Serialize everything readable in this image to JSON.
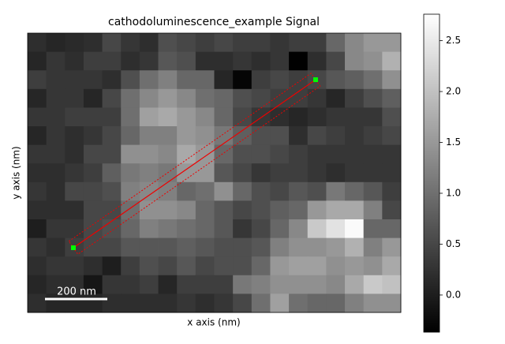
{
  "chart_data": {
    "type": "heatmap",
    "title": "cathodoluminescence_example Signal",
    "x_label": "x axis (nm)",
    "y_label": "y axis (nm)",
    "scale_bar": "200 nm",
    "colormap": "gray",
    "zlim": [
      -0.365,
      2.76
    ],
    "colorbar_ticks": [
      {
        "value": 0,
        "label": "0.0"
      },
      0.5,
      {
        "value": 1,
        "label": "1.0"
      },
      1.5,
      {
        "value": 2,
        "label": "2.0"
      },
      2.5
    ],
    "z": [
      [
        0.2,
        0.1,
        0.15,
        0.2,
        0.5,
        0.3,
        0.2,
        0.6,
        0.5,
        0.4,
        0.5,
        0.4,
        0.4,
        0.3,
        0.4,
        0.4,
        0.9,
        1.3,
        1.5,
        1.5
      ],
      [
        0.1,
        0.3,
        0.2,
        0.4,
        0.4,
        0.2,
        0.3,
        0.7,
        0.6,
        0.2,
        0.2,
        0.3,
        0.2,
        0.3,
        -0.35,
        0.2,
        0.5,
        1.3,
        1.4,
        1.8
      ],
      [
        0.4,
        0.3,
        0.3,
        0.3,
        0.2,
        0.6,
        1.0,
        1.2,
        0.9,
        0.9,
        0.1,
        -0.3,
        0.4,
        0.5,
        0.4,
        0.5,
        0.7,
        0.8,
        1.0,
        1.4
      ],
      [
        0.1,
        0.3,
        0.3,
        0.1,
        0.5,
        1.0,
        1.3,
        1.5,
        1.3,
        1.0,
        0.9,
        0.6,
        0.5,
        0.4,
        0.4,
        0.3,
        0.1,
        0.4,
        0.6,
        0.8
      ],
      [
        0.3,
        0.3,
        0.4,
        0.4,
        0.4,
        1.0,
        1.6,
        1.7,
        1.5,
        1.3,
        0.9,
        0.5,
        0.3,
        0.2,
        0.1,
        0.2,
        0.3,
        0.3,
        0.3,
        0.6
      ],
      [
        0.1,
        0.3,
        0.2,
        0.3,
        0.5,
        0.9,
        1.2,
        1.2,
        1.5,
        1.4,
        1.1,
        0.8,
        0.6,
        0.6,
        0.2,
        0.5,
        0.4,
        0.3,
        0.4,
        0.5
      ],
      [
        0.3,
        0.3,
        0.2,
        0.5,
        0.5,
        1.4,
        1.4,
        1.3,
        1.7,
        1.5,
        0.9,
        0.6,
        0.6,
        0.5,
        0.4,
        0.3,
        0.3,
        0.3,
        0.3,
        0.3
      ],
      [
        0.2,
        0.2,
        0.3,
        0.4,
        0.8,
        1.1,
        1.2,
        1.1,
        1.5,
        1.5,
        0.7,
        0.5,
        0.3,
        0.4,
        0.4,
        0.3,
        0.2,
        0.3,
        0.3,
        0.3
      ],
      [
        0.3,
        0.2,
        0.5,
        0.5,
        0.6,
        1.2,
        1.3,
        1.2,
        0.9,
        1.0,
        1.4,
        0.9,
        0.6,
        0.5,
        0.7,
        0.6,
        1.1,
        0.9,
        0.7,
        0.4
      ],
      [
        0.2,
        0.2,
        0.2,
        0.5,
        0.5,
        1.0,
        1.4,
        1.4,
        1.3,
        0.9,
        0.7,
        0.5,
        0.6,
        0.8,
        0.9,
        1.5,
        1.7,
        1.7,
        1.2,
        0.5
      ],
      [
        0.0,
        0.3,
        0.3,
        0.5,
        0.6,
        0.9,
        1.2,
        1.1,
        1.0,
        0.9,
        0.7,
        0.3,
        0.5,
        0.9,
        1.3,
        2.1,
        2.4,
        2.7,
        0.9,
        0.9
      ],
      [
        0.3,
        0.2,
        0.4,
        0.5,
        0.5,
        0.7,
        0.7,
        0.7,
        0.8,
        0.7,
        0.6,
        0.6,
        0.7,
        1.2,
        1.4,
        1.4,
        1.5,
        1.8,
        1.2,
        1.5
      ],
      [
        0.2,
        0.3,
        0.3,
        0.2,
        0.0,
        0.4,
        0.6,
        0.5,
        0.7,
        0.5,
        0.6,
        0.6,
        0.9,
        1.5,
        1.6,
        1.6,
        1.4,
        1.5,
        1.4,
        1.7
      ],
      [
        0.1,
        0.2,
        0.2,
        -0.1,
        0.3,
        0.3,
        0.4,
        0.1,
        0.4,
        0.4,
        0.4,
        1.1,
        1.2,
        1.4,
        1.4,
        1.4,
        1.3,
        1.7,
        2.1,
        2.0
      ],
      [
        0.2,
        0.1,
        0.1,
        0.1,
        0.2,
        0.2,
        0.2,
        0.2,
        0.3,
        0.2,
        0.3,
        0.5,
        1.0,
        1.6,
        1.0,
        0.9,
        0.9,
        1.2,
        1.4,
        1.4
      ]
    ]
  }
}
